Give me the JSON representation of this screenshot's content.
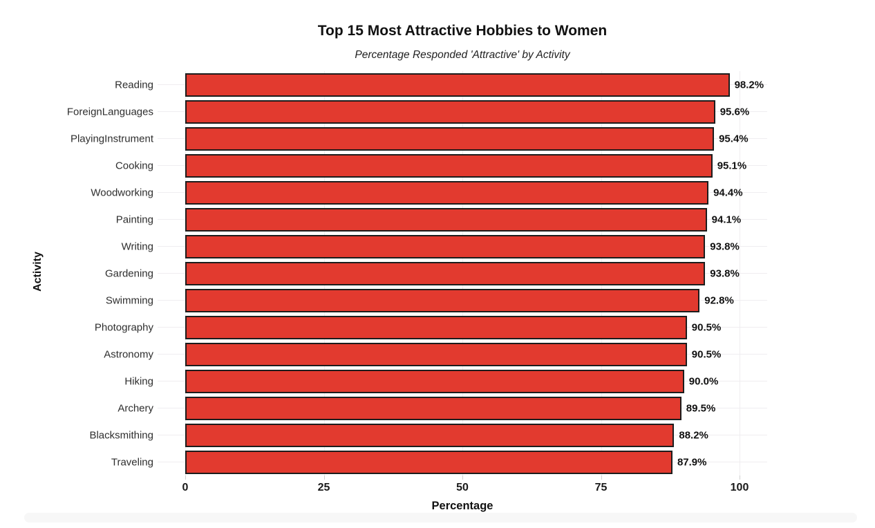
{
  "figure": {
    "title": "Top 15 Most Attractive Hobbies to Women",
    "subtitle": "Percentage Responded 'Attractive' by Activity"
  },
  "chart_data": {
    "type": "bar",
    "orientation": "horizontal",
    "title": "Top 15 Most Attractive Hobbies to Women",
    "subtitle": "Percentage Responded 'Attractive' by Activity",
    "xlabel": "Percentage",
    "ylabel": "Activity",
    "xlim": [
      0,
      100
    ],
    "xticks": [
      0,
      25,
      50,
      75,
      100
    ],
    "grid": true,
    "legend": false,
    "bar_color": "#e23a2f",
    "bar_border_color": "#1c1c1c",
    "value_suffix": "%",
    "categories": [
      "Reading",
      "ForeignLanguages",
      "PlayingInstrument",
      "Cooking",
      "Woodworking",
      "Painting",
      "Writing",
      "Gardening",
      "Swimming",
      "Photography",
      "Astronomy",
      "Hiking",
      "Archery",
      "Blacksmithing",
      "Traveling"
    ],
    "values": [
      98.2,
      95.6,
      95.4,
      95.1,
      94.4,
      94.1,
      93.8,
      93.8,
      92.8,
      90.5,
      90.5,
      90.0,
      89.5,
      88.2,
      87.9
    ]
  }
}
